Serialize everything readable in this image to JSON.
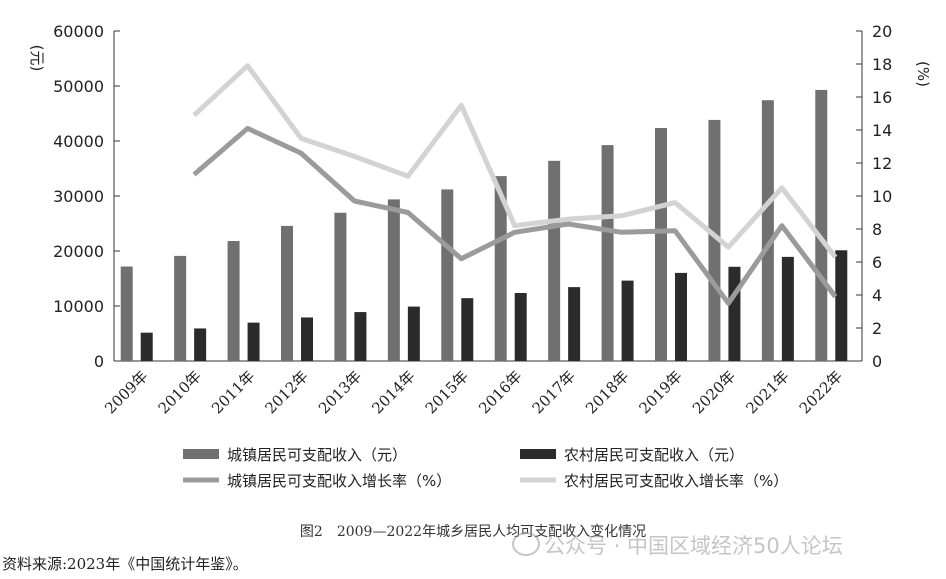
{
  "chart_data": {
    "type": "bar",
    "categories": [
      "2009年",
      "2010年",
      "2011年",
      "2012年",
      "2013年",
      "2014年",
      "2015年",
      "2016年",
      "2017年",
      "2018年",
      "2019年",
      "2020年",
      "2021年",
      "2022年"
    ],
    "series": [
      {
        "name": "城镇居民可支配收入（元）",
        "type": "bar",
        "axis": "left",
        "color": "#707070",
        "values": [
          17175,
          19109,
          21810,
          24565,
          26955,
          29381,
          31195,
          33616,
          36396,
          39251,
          42359,
          43834,
          47412,
          49283
        ]
      },
      {
        "name": "农村居民可支配收入（元）",
        "type": "bar",
        "axis": "left",
        "color": "#2b2b2b",
        "values": [
          5153,
          5919,
          6977,
          7917,
          8896,
          9892,
          11422,
          12363,
          13432,
          14617,
          16021,
          17131,
          18931,
          20133
        ]
      },
      {
        "name": "城镇居民可支配收入增长率（%）",
        "type": "line",
        "axis": "right",
        "color": "#9b9b9b",
        "values": [
          null,
          11.3,
          14.1,
          12.6,
          9.7,
          9.0,
          6.2,
          7.8,
          8.3,
          7.8,
          7.9,
          3.5,
          8.2,
          3.9
        ]
      },
      {
        "name": "农村居民可支配收入增长率（%）",
        "type": "line",
        "axis": "right",
        "color": "#d3d3d3",
        "values": [
          null,
          14.9,
          17.9,
          13.5,
          12.4,
          11.2,
          15.5,
          8.2,
          8.6,
          8.8,
          9.6,
          6.9,
          10.5,
          6.3
        ]
      }
    ],
    "y_left": {
      "label": "(元)",
      "ylim": [
        0,
        60000
      ],
      "ticks": [
        0,
        10000,
        20000,
        30000,
        40000,
        50000,
        60000
      ]
    },
    "y_right": {
      "label": "(%)",
      "ylim": [
        0,
        20
      ],
      "ticks": [
        0,
        2,
        4,
        6,
        8,
        10,
        12,
        14,
        16,
        18,
        20
      ]
    },
    "legend_placement": "bottom",
    "grid": false
  },
  "caption": "图2　2009—2022年城乡居民人均可支配收入变化情况",
  "source": "资料来源:2023年《中国统计年鉴》。",
  "watermark": "公众号 · 中国区域经济50人论坛"
}
